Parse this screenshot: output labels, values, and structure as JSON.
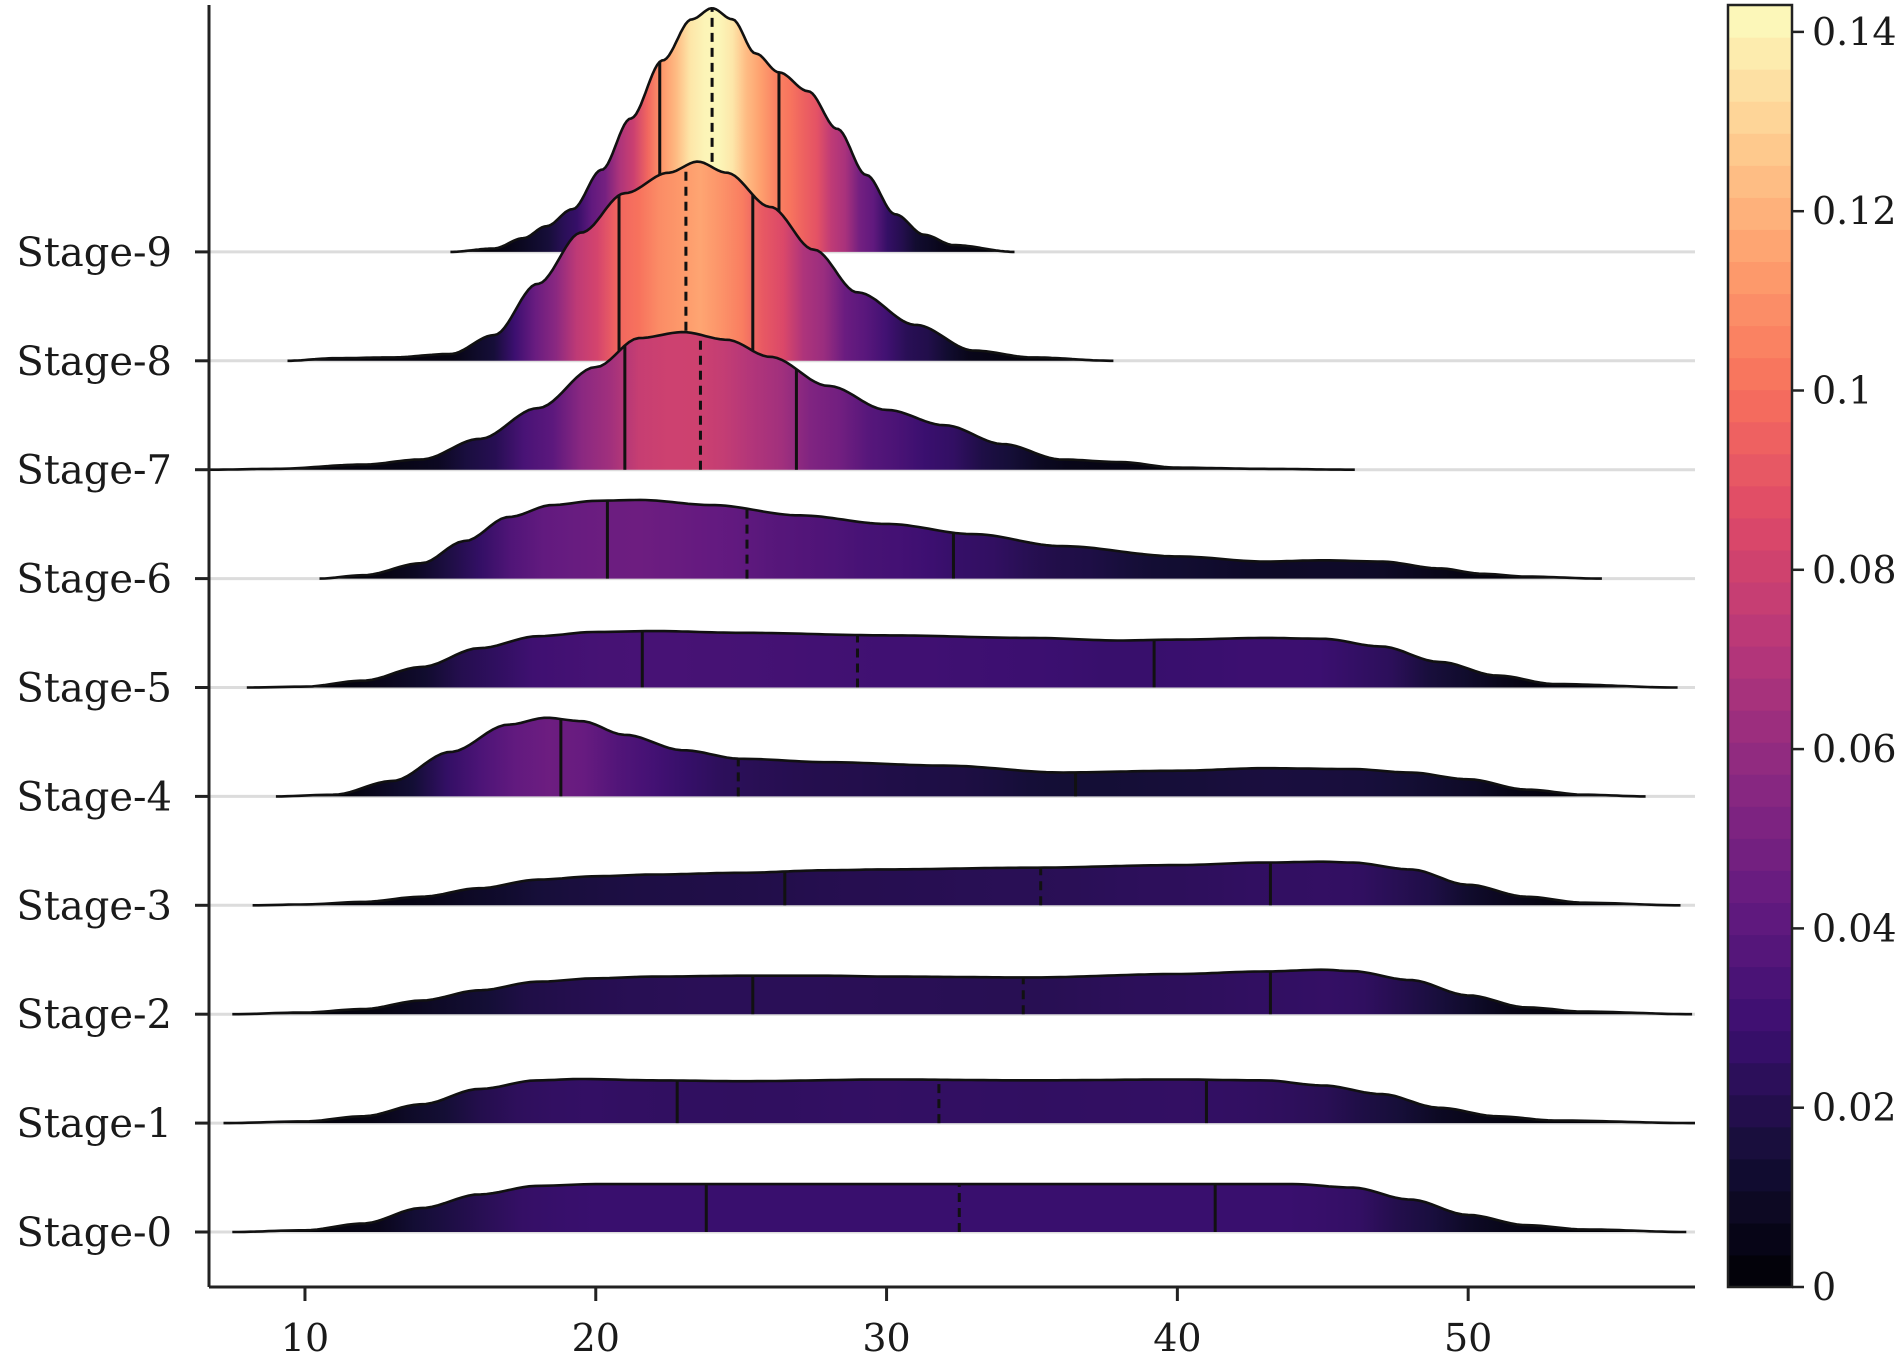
{
  "chart_data": {
    "type": "ridgeline",
    "title": "",
    "xlabel": "",
    "ylabel": "",
    "xlim": [
      6.7,
      57.8
    ],
    "x_ticks": [
      10,
      20,
      30,
      40,
      50
    ],
    "colormap": "magma",
    "colorbar": {
      "vmin": 0,
      "vmax": 0.143,
      "ticks": [
        0,
        0.02,
        0.04,
        0.06,
        0.08,
        0.1,
        0.12,
        0.14
      ],
      "tick_labels": [
        "0",
        "0.02",
        "0.04",
        "0.06",
        "0.08",
        "0.1",
        "0.12",
        "0.14"
      ]
    },
    "grid": "horizontal baselines",
    "quartile_markers": "solid lines at Q1 and Q3, dashed line at median",
    "series": [
      {
        "name": "Stage-0",
        "x_min": 7.5,
        "x_max": 57.5,
        "q1": 23.8,
        "median": 32.5,
        "q3": 41.3,
        "density": [
          [
            7.5,
            0
          ],
          [
            10,
            0.001
          ],
          [
            12,
            0.005
          ],
          [
            14,
            0.014
          ],
          [
            16,
            0.022
          ],
          [
            18,
            0.027
          ],
          [
            20,
            0.028
          ],
          [
            22,
            0.028
          ],
          [
            25,
            0.028
          ],
          [
            30,
            0.028
          ],
          [
            35,
            0.028
          ],
          [
            40,
            0.028
          ],
          [
            44,
            0.028
          ],
          [
            46,
            0.026
          ],
          [
            48,
            0.019
          ],
          [
            50,
            0.01
          ],
          [
            52,
            0.004
          ],
          [
            54,
            0.0015
          ],
          [
            57.5,
            0
          ]
        ]
      },
      {
        "name": "Stage-1",
        "x_min": 7.2,
        "x_max": 57.8,
        "q1": 22.8,
        "median": 31.8,
        "q3": 41.0,
        "density": [
          [
            7.2,
            0
          ],
          [
            10,
            0.001
          ],
          [
            12,
            0.004
          ],
          [
            14,
            0.011
          ],
          [
            16,
            0.02
          ],
          [
            18,
            0.025
          ],
          [
            19.5,
            0.0258
          ],
          [
            22,
            0.025
          ],
          [
            25,
            0.0245
          ],
          [
            30,
            0.0255
          ],
          [
            35,
            0.025
          ],
          [
            40,
            0.0255
          ],
          [
            43,
            0.025
          ],
          [
            45,
            0.022
          ],
          [
            47,
            0.017
          ],
          [
            49,
            0.009
          ],
          [
            51,
            0.004
          ],
          [
            53,
            0.0015
          ],
          [
            57.8,
            0
          ]
        ]
      },
      {
        "name": "Stage-2",
        "x_min": 7.5,
        "x_max": 57.7,
        "q1": 25.4,
        "median": 34.7,
        "q3": 43.2,
        "density": [
          [
            7.5,
            0
          ],
          [
            10,
            0.001
          ],
          [
            12,
            0.003
          ],
          [
            14,
            0.008
          ],
          [
            16,
            0.014
          ],
          [
            18,
            0.019
          ],
          [
            20,
            0.021
          ],
          [
            22,
            0.022
          ],
          [
            25,
            0.0225
          ],
          [
            28,
            0.0225
          ],
          [
            30,
            0.022
          ],
          [
            35,
            0.0215
          ],
          [
            40,
            0.0235
          ],
          [
            43,
            0.025
          ],
          [
            45,
            0.026
          ],
          [
            46,
            0.0252
          ],
          [
            48,
            0.02
          ],
          [
            50,
            0.011
          ],
          [
            52,
            0.004
          ],
          [
            54,
            0.0015
          ],
          [
            57.7,
            0
          ]
        ]
      },
      {
        "name": "Stage-3",
        "x_min": 8.2,
        "x_max": 57.3,
        "q1": 26.5,
        "median": 35.3,
        "q3": 43.2,
        "density": [
          [
            8.2,
            0
          ],
          [
            10,
            0.0005
          ],
          [
            12,
            0.002
          ],
          [
            14,
            0.005
          ],
          [
            16,
            0.01
          ],
          [
            18,
            0.015
          ],
          [
            20,
            0.017
          ],
          [
            22,
            0.018
          ],
          [
            25,
            0.019
          ],
          [
            28,
            0.0205
          ],
          [
            30,
            0.021
          ],
          [
            35,
            0.022
          ],
          [
            40,
            0.0235
          ],
          [
            43,
            0.025
          ],
          [
            45,
            0.0255
          ],
          [
            46,
            0.025
          ],
          [
            48,
            0.021
          ],
          [
            50,
            0.012
          ],
          [
            52,
            0.005
          ],
          [
            54,
            0.0015
          ],
          [
            57.3,
            0
          ]
        ]
      },
      {
        "name": "Stage-4",
        "x_min": 9.0,
        "x_max": 56.1,
        "q1": 18.8,
        "median": 24.9,
        "q3": 36.5,
        "density": [
          [
            9,
            0
          ],
          [
            11,
            0.001
          ],
          [
            13,
            0.009
          ],
          [
            15,
            0.026
          ],
          [
            17,
            0.042
          ],
          [
            18.3,
            0.046
          ],
          [
            19.5,
            0.044
          ],
          [
            21,
            0.036
          ],
          [
            23,
            0.027
          ],
          [
            25,
            0.022
          ],
          [
            28,
            0.02
          ],
          [
            32,
            0.018
          ],
          [
            36,
            0.014
          ],
          [
            40,
            0.015
          ],
          [
            43,
            0.0165
          ],
          [
            46,
            0.016
          ],
          [
            48,
            0.014
          ],
          [
            50,
            0.01
          ],
          [
            52,
            0.004
          ],
          [
            54,
            0.001
          ],
          [
            56.1,
            0
          ]
        ]
      },
      {
        "name": "Stage-5",
        "x_min": 8.0,
        "x_max": 57.2,
        "q1": 21.6,
        "median": 29.0,
        "q3": 39.2,
        "density": [
          [
            8,
            0
          ],
          [
            10,
            0.0005
          ],
          [
            12,
            0.004
          ],
          [
            14,
            0.012
          ],
          [
            16,
            0.023
          ],
          [
            18,
            0.03
          ],
          [
            20,
            0.0325
          ],
          [
            22,
            0.033
          ],
          [
            25,
            0.032
          ],
          [
            30,
            0.0305
          ],
          [
            35,
            0.029
          ],
          [
            38,
            0.0275
          ],
          [
            40,
            0.028
          ],
          [
            43,
            0.029
          ],
          [
            45,
            0.0285
          ],
          [
            47,
            0.024
          ],
          [
            49,
            0.015
          ],
          [
            51,
            0.007
          ],
          [
            53,
            0.002
          ],
          [
            57.2,
            0
          ]
        ]
      },
      {
        "name": "Stage-6",
        "x_min": 10.5,
        "x_max": 54.6,
        "q1": 20.4,
        "median": 25.2,
        "q3": 32.3,
        "density": [
          [
            10.5,
            0
          ],
          [
            12,
            0.002
          ],
          [
            14,
            0.009
          ],
          [
            15.5,
            0.022
          ],
          [
            17,
            0.036
          ],
          [
            18.5,
            0.043
          ],
          [
            20,
            0.0455
          ],
          [
            21.5,
            0.046
          ],
          [
            24,
            0.043
          ],
          [
            27,
            0.037
          ],
          [
            30,
            0.032
          ],
          [
            33,
            0.026
          ],
          [
            36,
            0.019
          ],
          [
            40,
            0.013
          ],
          [
            43,
            0.01
          ],
          [
            45,
            0.0107
          ],
          [
            47,
            0.01
          ],
          [
            49,
            0.006
          ],
          [
            50.5,
            0.0028
          ],
          [
            52,
            0.0012
          ],
          [
            54.6,
            0
          ]
        ]
      },
      {
        "name": "Stage-7",
        "x_min": 6.7,
        "x_max": 46.1,
        "q1": 21.0,
        "median": 23.6,
        "q3": 26.9,
        "density": [
          [
            6.7,
            0
          ],
          [
            9,
            0.0005
          ],
          [
            12,
            0.003
          ],
          [
            14,
            0.006
          ],
          [
            16,
            0.018
          ],
          [
            18,
            0.036
          ],
          [
            20,
            0.06
          ],
          [
            21.5,
            0.077
          ],
          [
            23,
            0.0805
          ],
          [
            24.5,
            0.076
          ],
          [
            26,
            0.066
          ],
          [
            28,
            0.049
          ],
          [
            30,
            0.035
          ],
          [
            32,
            0.026
          ],
          [
            34,
            0.015
          ],
          [
            36,
            0.006
          ],
          [
            38,
            0.0045
          ],
          [
            40,
            0.0012
          ],
          [
            43,
            0.0005
          ],
          [
            46.1,
            0
          ]
        ]
      },
      {
        "name": "Stage-8",
        "x_min": 9.4,
        "x_max": 37.8,
        "q1": 20.8,
        "median": 23.1,
        "q3": 25.4,
        "density": [
          [
            9.4,
            0
          ],
          [
            11,
            0.0015
          ],
          [
            13,
            0.002
          ],
          [
            15,
            0.004
          ],
          [
            16.5,
            0.015
          ],
          [
            18,
            0.045
          ],
          [
            19.5,
            0.075
          ],
          [
            21,
            0.098
          ],
          [
            22.5,
            0.11
          ],
          [
            23.5,
            0.1165
          ],
          [
            24.5,
            0.11
          ],
          [
            26,
            0.09
          ],
          [
            27.5,
            0.065
          ],
          [
            29,
            0.04
          ],
          [
            31,
            0.021
          ],
          [
            33,
            0.006
          ],
          [
            35,
            0.002
          ],
          [
            37.8,
            0
          ]
        ]
      },
      {
        "name": "Stage-9",
        "x_min": 15.0,
        "x_max": 34.4,
        "q1": 22.2,
        "median": 24.0,
        "q3": 26.3,
        "density": [
          [
            15,
            0
          ],
          [
            16.5,
            0.002
          ],
          [
            17.5,
            0.008
          ],
          [
            18.3,
            0.015
          ],
          [
            19.2,
            0.025
          ],
          [
            20.2,
            0.048
          ],
          [
            21.2,
            0.078
          ],
          [
            22.3,
            0.112
          ],
          [
            23.3,
            0.136
          ],
          [
            24,
            0.1425
          ],
          [
            24.7,
            0.136
          ],
          [
            25.5,
            0.116
          ],
          [
            26.3,
            0.105
          ],
          [
            27.3,
            0.094
          ],
          [
            28.3,
            0.072
          ],
          [
            29.3,
            0.045
          ],
          [
            30.3,
            0.022
          ],
          [
            31.3,
            0.01
          ],
          [
            32.3,
            0.004
          ],
          [
            34.4,
            0
          ]
        ]
      }
    ]
  }
}
